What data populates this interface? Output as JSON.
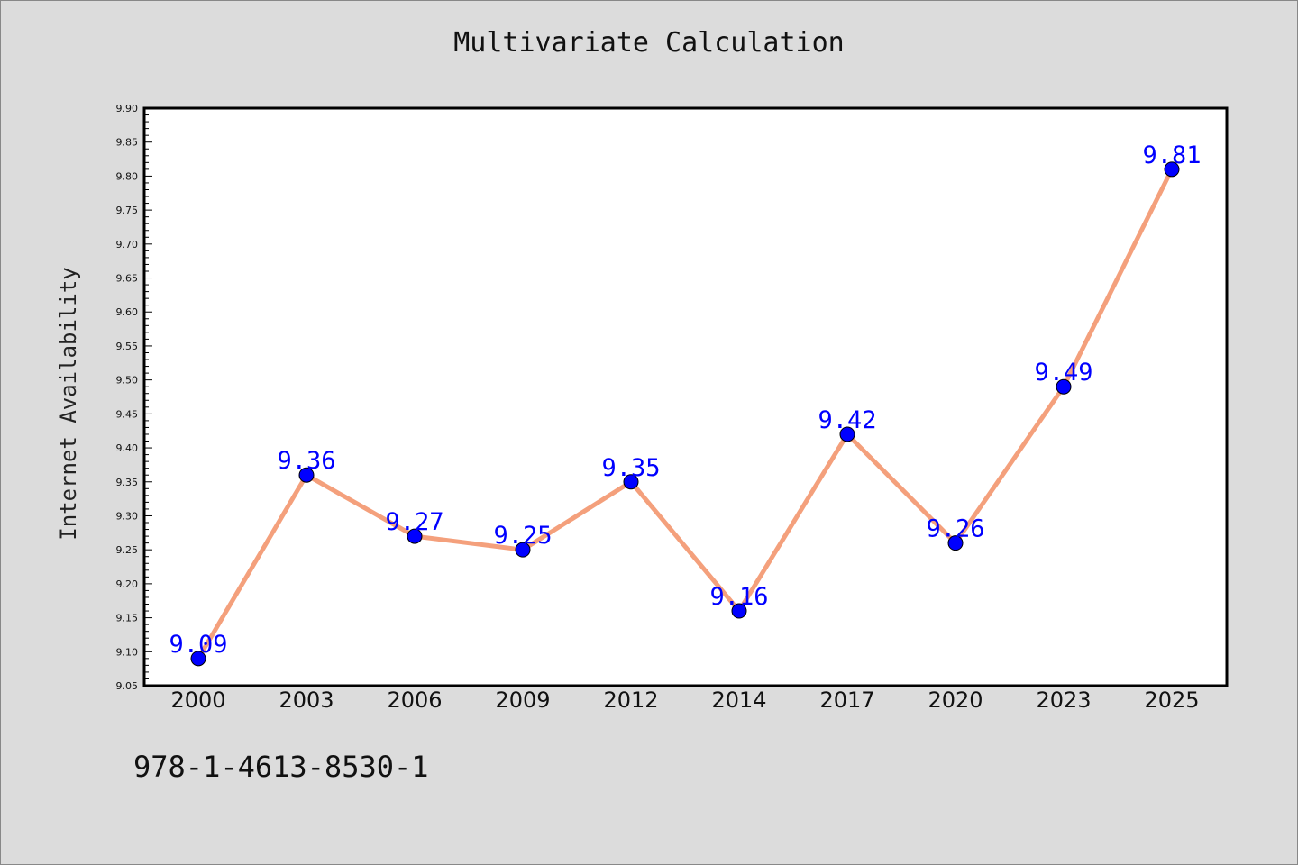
{
  "chart_data": {
    "type": "line",
    "title": "Multivariate Calculation",
    "xlabel": "",
    "ylabel": "Internet Availability",
    "categories": [
      "2000",
      "2003",
      "2006",
      "2009",
      "2012",
      "2014",
      "2017",
      "2020",
      "2023",
      "2025"
    ],
    "series": [
      {
        "values": [
          9.09,
          9.36,
          9.27,
          9.25,
          9.35,
          9.16,
          9.42,
          9.26,
          9.49,
          9.81
        ],
        "labels": [
          "9.09",
          "9.36",
          "9.27",
          "9.25",
          "9.35",
          "9.16",
          "9.42",
          "9.26",
          "9.49",
          "9.81"
        ],
        "line_color": "#f4a07c",
        "marker_color": "#0000ff",
        "label_color": "#0000ff"
      }
    ],
    "ylim": [
      9.05,
      9.9
    ],
    "yticks": [
      "9.05",
      "9.10",
      "9.15",
      "9.20",
      "9.25",
      "9.30",
      "9.35",
      "9.40",
      "9.45",
      "9.50",
      "9.55",
      "9.60",
      "9.65",
      "9.70",
      "9.75",
      "9.80",
      "9.85",
      "9.90"
    ],
    "grid": false,
    "legend": "none",
    "plot_background": "#ffffff",
    "page_background": "#dcdcdc"
  },
  "footer": {
    "code": "978-1-4613-8530-1"
  }
}
